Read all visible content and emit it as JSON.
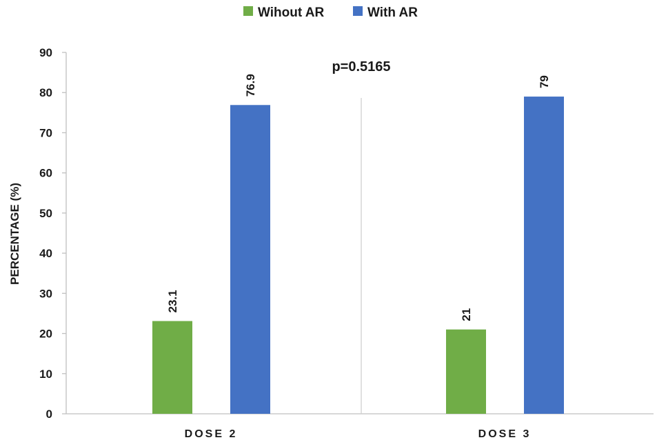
{
  "chart_data": {
    "type": "bar",
    "categories": [
      "DOSE 2",
      "DOSE 3"
    ],
    "series": [
      {
        "name": "Wihout AR",
        "color": "#70ad47",
        "values": [
          23.1,
          21
        ]
      },
      {
        "name": "With AR",
        "color": "#4472c4",
        "values": [
          76.9,
          79
        ]
      }
    ],
    "data_labels": [
      [
        "23.1",
        "21"
      ],
      [
        "76.9",
        "79"
      ]
    ],
    "ylabel": "PERCENTAGE (%)",
    "ylim": [
      0,
      90
    ],
    "yticks": [
      0,
      10,
      20,
      30,
      40,
      50,
      60,
      70,
      80,
      90
    ],
    "annotation": "p=0.5165",
    "legend_position": "top-center",
    "grid": false,
    "category_separator": true
  }
}
